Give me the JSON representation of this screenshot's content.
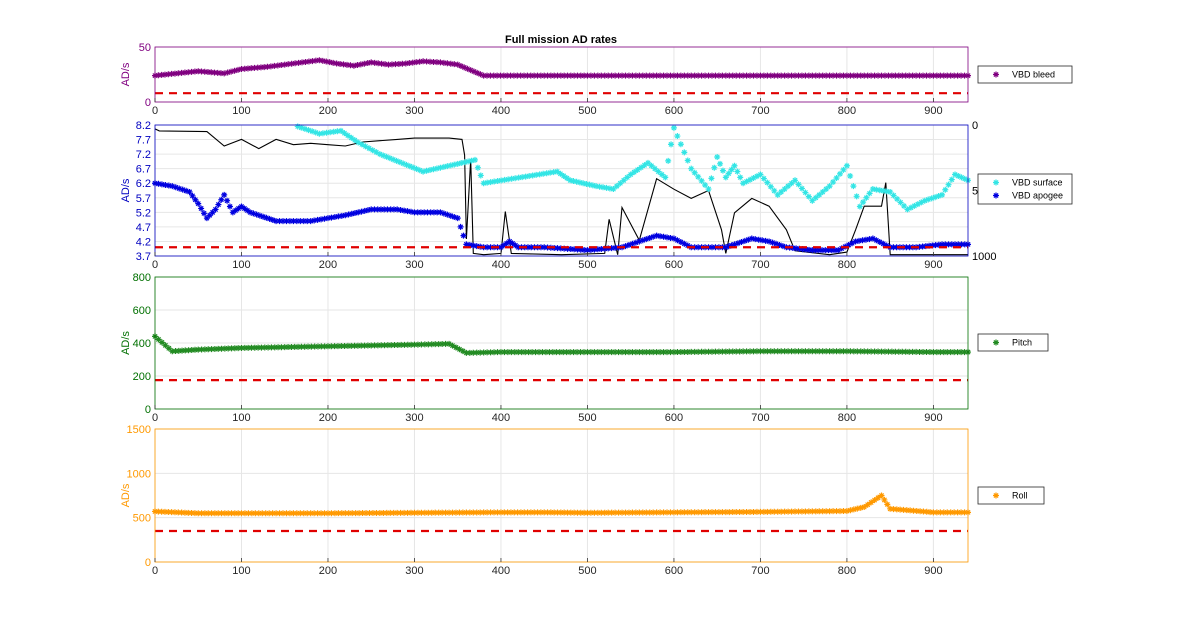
{
  "figure": {
    "title": "Full mission AD rates"
  },
  "chart_data": [
    {
      "type": "scatter",
      "ylabel": "AD/s",
      "axis_color": "#800080",
      "xlim": [
        0,
        940
      ],
      "ylim": [
        0,
        50
      ],
      "xticks": [
        "0",
        "100",
        "200",
        "300",
        "400",
        "500",
        "600",
        "700",
        "800",
        "900"
      ],
      "yticks": [
        "0",
        "50"
      ],
      "yticks_num": [
        0,
        50
      ],
      "threshold": 8,
      "threshold_color": "#e00000",
      "legend": [
        "VBD bleed"
      ],
      "series": [
        {
          "name": "VBD bleed",
          "color": "#800080",
          "marker": "*",
          "y_pattern": "hover around 24, scattered up to 40 between x=100 and 360",
          "points": [
            [
              0,
              24
            ],
            [
              50,
              28
            ],
            [
              80,
              26
            ],
            [
              100,
              30
            ],
            [
              130,
              32
            ],
            [
              150,
              34
            ],
            [
              170,
              36
            ],
            [
              190,
              38
            ],
            [
              210,
              35
            ],
            [
              230,
              33
            ],
            [
              250,
              36
            ],
            [
              270,
              34
            ],
            [
              290,
              35
            ],
            [
              310,
              37
            ],
            [
              330,
              36
            ],
            [
              350,
              34
            ],
            [
              380,
              24
            ],
            [
              450,
              24
            ],
            [
              500,
              24
            ],
            [
              600,
              24
            ],
            [
              700,
              24
            ],
            [
              800,
              24
            ],
            [
              900,
              24
            ],
            [
              940,
              24
            ]
          ]
        }
      ]
    },
    {
      "type": "scatter",
      "ylabel": "AD/s",
      "axis_color": "#0000c0",
      "xlim": [
        0,
        940
      ],
      "ylim": [
        3.7,
        8.2
      ],
      "xticks": [
        "0",
        "100",
        "200",
        "300",
        "400",
        "500",
        "600",
        "700",
        "800",
        "900"
      ],
      "yticks": [
        "3.7",
        "4.2",
        "4.7",
        "5.2",
        "5.7",
        "6.2",
        "6.7",
        "7.2",
        "7.7",
        "8.2"
      ],
      "yticks_num": [
        3.7,
        4.2,
        4.7,
        5.2,
        5.7,
        6.2,
        6.7,
        7.2,
        7.7,
        8.2
      ],
      "y2ticks": [
        "0",
        "500",
        "1000"
      ],
      "y2ticks_num": [
        0,
        500,
        1000
      ],
      "y2lim": [
        0,
        1000
      ],
      "threshold": 4.0,
      "threshold_color": "#e00000",
      "legend": [
        "VBD surface",
        "VBD apogee"
      ],
      "series": [
        {
          "name": "VBD surface",
          "color": "#33e5e5",
          "marker": "*",
          "points": [
            [
              165,
              8.15
            ],
            [
              190,
              7.9
            ],
            [
              215,
              8.0
            ],
            [
              235,
              7.6
            ],
            [
              260,
              7.2
            ],
            [
              310,
              6.6
            ],
            [
              370,
              7.0
            ],
            [
              380,
              6.2
            ],
            [
              465,
              6.6
            ],
            [
              480,
              6.3
            ],
            [
              510,
              6.1
            ],
            [
              530,
              6.0
            ],
            [
              550,
              6.5
            ],
            [
              570,
              6.9
            ],
            [
              590,
              6.4
            ],
            [
              600,
              8.1
            ],
            [
              620,
              6.7
            ],
            [
              640,
              6.0
            ],
            [
              650,
              7.1
            ],
            [
              660,
              6.4
            ],
            [
              670,
              6.8
            ],
            [
              680,
              6.2
            ],
            [
              700,
              6.5
            ],
            [
              720,
              5.8
            ],
            [
              740,
              6.3
            ],
            [
              760,
              5.6
            ],
            [
              780,
              6.1
            ],
            [
              800,
              6.8
            ],
            [
              815,
              5.4
            ],
            [
              830,
              6.0
            ],
            [
              850,
              5.9
            ],
            [
              870,
              5.3
            ],
            [
              890,
              5.6
            ],
            [
              910,
              5.8
            ],
            [
              925,
              6.5
            ],
            [
              940,
              6.3
            ]
          ]
        },
        {
          "name": "VBD apogee",
          "color": "#0000e0",
          "marker": "*",
          "points": [
            [
              0,
              6.2
            ],
            [
              20,
              6.1
            ],
            [
              40,
              5.9
            ],
            [
              50,
              5.5
            ],
            [
              60,
              5.0
            ],
            [
              70,
              5.3
            ],
            [
              80,
              5.8
            ],
            [
              90,
              5.2
            ],
            [
              100,
              5.4
            ],
            [
              110,
              5.2
            ],
            [
              140,
              4.9
            ],
            [
              180,
              4.9
            ],
            [
              200,
              5.0
            ],
            [
              220,
              5.1
            ],
            [
              250,
              5.3
            ],
            [
              280,
              5.3
            ],
            [
              300,
              5.2
            ],
            [
              330,
              5.2
            ],
            [
              350,
              5.0
            ],
            [
              360,
              4.1
            ],
            [
              380,
              4.0
            ],
            [
              400,
              4.0
            ],
            [
              410,
              4.2
            ],
            [
              420,
              4.0
            ],
            [
              450,
              4.0
            ],
            [
              500,
              3.9
            ],
            [
              540,
              4.0
            ],
            [
              560,
              4.2
            ],
            [
              580,
              4.4
            ],
            [
              600,
              4.3
            ],
            [
              620,
              4.0
            ],
            [
              640,
              4.0
            ],
            [
              660,
              4.0
            ],
            [
              670,
              4.1
            ],
            [
              690,
              4.3
            ],
            [
              710,
              4.2
            ],
            [
              730,
              4.0
            ],
            [
              760,
              3.9
            ],
            [
              790,
              3.9
            ],
            [
              810,
              4.2
            ],
            [
              830,
              4.3
            ],
            [
              850,
              4.0
            ],
            [
              880,
              4.0
            ],
            [
              910,
              4.1
            ],
            [
              940,
              4.1
            ]
          ]
        },
        {
          "name": "",
          "color": "#000000",
          "type": "line",
          "axis": "y2",
          "points": [
            [
              0,
              30
            ],
            [
              5,
              45
            ],
            [
              60,
              50
            ],
            [
              80,
              160
            ],
            [
              100,
              110
            ],
            [
              120,
              180
            ],
            [
              140,
              110
            ],
            [
              160,
              150
            ],
            [
              180,
              140
            ],
            [
              200,
              150
            ],
            [
              220,
              160
            ],
            [
              240,
              130
            ],
            [
              260,
              120
            ],
            [
              280,
              110
            ],
            [
              300,
              100
            ],
            [
              340,
              100
            ],
            [
              355,
              110
            ],
            [
              358,
              230
            ],
            [
              360,
              870
            ],
            [
              365,
              260
            ],
            [
              368,
              980
            ],
            [
              380,
              990
            ],
            [
              400,
              980
            ],
            [
              405,
              660
            ],
            [
              412,
              980
            ],
            [
              470,
              990
            ],
            [
              520,
              980
            ],
            [
              525,
              720
            ],
            [
              535,
              990
            ],
            [
              540,
              630
            ],
            [
              560,
              880
            ],
            [
              580,
              410
            ],
            [
              600,
              490
            ],
            [
              620,
              560
            ],
            [
              640,
              500
            ],
            [
              655,
              800
            ],
            [
              660,
              980
            ],
            [
              670,
              670
            ],
            [
              690,
              560
            ],
            [
              710,
              620
            ],
            [
              730,
              800
            ],
            [
              740,
              960
            ],
            [
              780,
              990
            ],
            [
              800,
              970
            ],
            [
              810,
              800
            ],
            [
              820,
              620
            ],
            [
              840,
              620
            ],
            [
              845,
              440
            ],
            [
              850,
              990
            ],
            [
              900,
              990
            ],
            [
              940,
              990
            ]
          ]
        }
      ]
    },
    {
      "type": "scatter",
      "ylabel": "AD/s",
      "axis_color": "#007000",
      "xlim": [
        0,
        940
      ],
      "ylim": [
        0,
        800
      ],
      "xticks": [
        "0",
        "100",
        "200",
        "300",
        "400",
        "500",
        "600",
        "700",
        "800",
        "900"
      ],
      "yticks": [
        "0",
        "200",
        "400",
        "600",
        "800"
      ],
      "yticks_num": [
        0,
        200,
        400,
        600,
        800
      ],
      "threshold": 175,
      "threshold_color": "#e00000",
      "legend": [
        "Pitch"
      ],
      "series": [
        {
          "name": "Pitch",
          "color": "#228b22",
          "marker": "*",
          "points": [
            [
              0,
              440
            ],
            [
              20,
              350
            ],
            [
              50,
              360
            ],
            [
              100,
              370
            ],
            [
              150,
              375
            ],
            [
              200,
              380
            ],
            [
              250,
              385
            ],
            [
              300,
              390
            ],
            [
              340,
              395
            ],
            [
              360,
              340
            ],
            [
              400,
              345
            ],
            [
              500,
              345
            ],
            [
              600,
              345
            ],
            [
              700,
              350
            ],
            [
              800,
              350
            ],
            [
              900,
              345
            ],
            [
              940,
              345
            ]
          ]
        }
      ]
    },
    {
      "type": "scatter",
      "ylabel": "AD/s",
      "axis_color": "#ff9900",
      "xlim": [
        0,
        940
      ],
      "ylim": [
        0,
        1500
      ],
      "xticks": [
        "0",
        "100",
        "200",
        "300",
        "400",
        "500",
        "600",
        "700",
        "800",
        "900"
      ],
      "yticks": [
        "0",
        "500",
        "1000",
        "1500"
      ],
      "yticks_num": [
        0,
        500,
        1000,
        1500
      ],
      "threshold": 350,
      "threshold_color": "#e00000",
      "legend": [
        "Roll"
      ],
      "series": [
        {
          "name": "Roll",
          "color": "#ff9900",
          "marker": "*",
          "points": [
            [
              0,
              570
            ],
            [
              50,
              550
            ],
            [
              100,
              550
            ],
            [
              200,
              550
            ],
            [
              300,
              555
            ],
            [
              400,
              560
            ],
            [
              450,
              560
            ],
            [
              500,
              555
            ],
            [
              600,
              560
            ],
            [
              700,
              565
            ],
            [
              800,
              575
            ],
            [
              820,
              620
            ],
            [
              840,
              750
            ],
            [
              850,
              600
            ],
            [
              900,
              560
            ],
            [
              940,
              560
            ]
          ]
        }
      ]
    }
  ]
}
